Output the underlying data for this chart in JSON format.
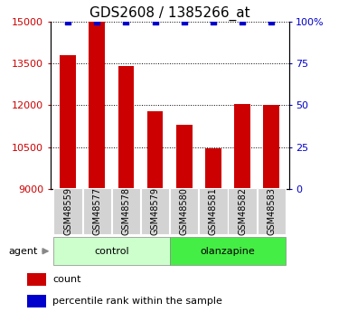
{
  "title": "GDS2608 / 1385266_at",
  "categories": [
    "GSM48559",
    "GSM48577",
    "GSM48578",
    "GSM48579",
    "GSM48580",
    "GSM48581",
    "GSM48582",
    "GSM48583"
  ],
  "bar_values": [
    13800,
    15000,
    13400,
    11800,
    11300,
    10450,
    12050,
    12000
  ],
  "percentile_values": [
    100,
    100,
    100,
    100,
    100,
    100,
    100,
    100
  ],
  "bar_color": "#cc0000",
  "dot_color": "#0000cc",
  "ylim_left": [
    9000,
    15000
  ],
  "ylim_right": [
    0,
    100
  ],
  "yticks_left": [
    9000,
    10500,
    12000,
    13500,
    15000
  ],
  "yticks_right": [
    0,
    25,
    50,
    75,
    100
  ],
  "ytick_labels_right": [
    "0",
    "25",
    "50",
    "75",
    "100%"
  ],
  "group_labels": [
    "control",
    "olanzapine"
  ],
  "group_ranges": [
    [
      0,
      4
    ],
    [
      4,
      8
    ]
  ],
  "agent_label": "agent",
  "legend_count_label": "count",
  "legend_percentile_label": "percentile rank within the sample",
  "control_bg": "#ccffcc",
  "olanzapine_bg": "#44ee44",
  "xticklabel_bg": "#d3d3d3",
  "grid_color": "#000000",
  "title_fontsize": 11,
  "tick_fontsize": 8,
  "label_fontsize": 8,
  "bar_width": 0.55
}
